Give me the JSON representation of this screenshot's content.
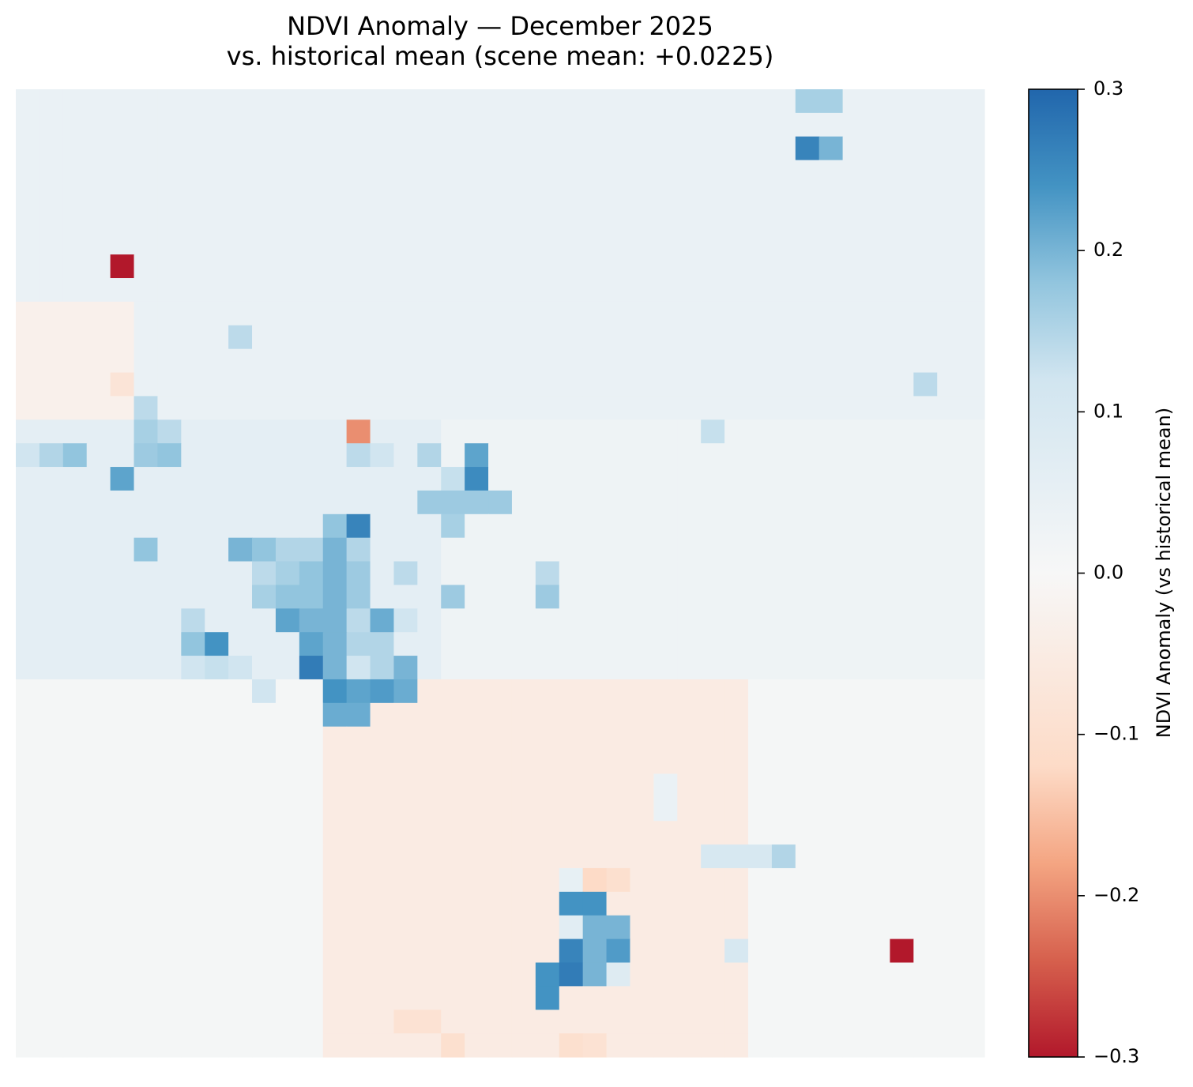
{
  "chart_data": {
    "type": "heatmap",
    "title_line1": "NDVI Anomaly — December 2025",
    "title_line2": "vs. historical mean  (scene mean: +0.0225)",
    "colorbar": {
      "label": "NDVI Anomaly (vs historical mean)",
      "colormap": "RdBu",
      "vmin": -0.3,
      "vmax": 0.3,
      "ticks": [
        0.3,
        0.2,
        0.1,
        0.0,
        -0.1,
        -0.2,
        -0.3
      ],
      "tick_labels": [
        "0.3",
        "0.2",
        "0.1",
        "0.0",
        "−0.1",
        "−0.2",
        "−0.3"
      ]
    },
    "grid": false,
    "axes_visible": false,
    "nrows": 41,
    "ncols": 41,
    "default_value": 0.02,
    "base_regions": [
      {
        "rows": [
          0,
          13
        ],
        "cols": [
          0,
          40
        ],
        "value": 0.04
      },
      {
        "rows": [
          9,
          14
        ],
        "cols": [
          0,
          4
        ],
        "value": -0.03
      },
      {
        "rows": [
          14,
          24
        ],
        "cols": [
          0,
          17
        ],
        "value": 0.06
      },
      {
        "rows": [
          14,
          24
        ],
        "cols": [
          18,
          40
        ],
        "value": 0.03
      },
      {
        "rows": [
          25,
          40
        ],
        "cols": [
          0,
          12
        ],
        "value": 0.01
      },
      {
        "rows": [
          25,
          40
        ],
        "cols": [
          13,
          30
        ],
        "value": -0.05
      },
      {
        "rows": [
          25,
          40
        ],
        "cols": [
          31,
          40
        ],
        "value": 0.01
      }
    ],
    "cells": [
      [
        0,
        33,
        0.16
      ],
      [
        0,
        34,
        0.16
      ],
      [
        2,
        33,
        0.26
      ],
      [
        2,
        34,
        0.2
      ],
      [
        7,
        4,
        -0.3
      ],
      [
        10,
        9,
        0.14
      ],
      [
        12,
        4,
        -0.08
      ],
      [
        12,
        38,
        0.14
      ],
      [
        13,
        5,
        0.14
      ],
      [
        14,
        5,
        0.16
      ],
      [
        14,
        6,
        0.14
      ],
      [
        14,
        14,
        -0.2
      ],
      [
        14,
        29,
        0.13
      ],
      [
        15,
        0,
        0.12
      ],
      [
        15,
        1,
        0.15
      ],
      [
        15,
        2,
        0.18
      ],
      [
        15,
        5,
        0.17
      ],
      [
        15,
        6,
        0.18
      ],
      [
        15,
        14,
        0.14
      ],
      [
        15,
        15,
        0.12
      ],
      [
        15,
        17,
        0.15
      ],
      [
        15,
        19,
        0.22
      ],
      [
        16,
        4,
        0.22
      ],
      [
        16,
        18,
        0.13
      ],
      [
        16,
        19,
        0.25
      ],
      [
        17,
        17,
        0.17
      ],
      [
        17,
        18,
        0.17
      ],
      [
        17,
        19,
        0.17
      ],
      [
        17,
        20,
        0.17
      ],
      [
        18,
        13,
        0.18
      ],
      [
        18,
        14,
        0.26
      ],
      [
        18,
        18,
        0.16
      ],
      [
        19,
        5,
        0.18
      ],
      [
        19,
        9,
        0.2
      ],
      [
        19,
        10,
        0.18
      ],
      [
        19,
        11,
        0.15
      ],
      [
        19,
        12,
        0.15
      ],
      [
        19,
        13,
        0.2
      ],
      [
        19,
        14,
        0.15
      ],
      [
        20,
        10,
        0.14
      ],
      [
        20,
        11,
        0.16
      ],
      [
        20,
        12,
        0.18
      ],
      [
        20,
        13,
        0.2
      ],
      [
        20,
        14,
        0.17
      ],
      [
        20,
        16,
        0.14
      ],
      [
        20,
        22,
        0.14
      ],
      [
        21,
        10,
        0.16
      ],
      [
        21,
        11,
        0.18
      ],
      [
        21,
        12,
        0.18
      ],
      [
        21,
        13,
        0.2
      ],
      [
        21,
        14,
        0.17
      ],
      [
        21,
        18,
        0.17
      ],
      [
        21,
        22,
        0.17
      ],
      [
        22,
        7,
        0.14
      ],
      [
        22,
        11,
        0.22
      ],
      [
        22,
        12,
        0.2
      ],
      [
        22,
        13,
        0.2
      ],
      [
        22,
        14,
        0.14
      ],
      [
        22,
        15,
        0.21
      ],
      [
        22,
        16,
        0.12
      ],
      [
        23,
        7,
        0.18
      ],
      [
        23,
        8,
        0.24
      ],
      [
        23,
        12,
        0.22
      ],
      [
        23,
        13,
        0.2
      ],
      [
        23,
        14,
        0.15
      ],
      [
        23,
        15,
        0.15
      ],
      [
        24,
        7,
        0.12
      ],
      [
        24,
        8,
        0.13
      ],
      [
        24,
        9,
        0.12
      ],
      [
        24,
        12,
        0.27
      ],
      [
        24,
        13,
        0.2
      ],
      [
        24,
        14,
        0.12
      ],
      [
        24,
        15,
        0.15
      ],
      [
        24,
        16,
        0.2
      ],
      [
        25,
        10,
        0.12
      ],
      [
        25,
        13,
        0.24
      ],
      [
        25,
        14,
        0.22
      ],
      [
        25,
        15,
        0.23
      ],
      [
        25,
        16,
        0.21
      ],
      [
        26,
        13,
        0.21
      ],
      [
        26,
        14,
        0.21
      ],
      [
        29,
        27,
        0.04
      ],
      [
        30,
        27,
        0.04
      ],
      [
        32,
        29,
        0.1
      ],
      [
        32,
        30,
        0.1
      ],
      [
        32,
        31,
        0.1
      ],
      [
        32,
        32,
        0.15
      ],
      [
        33,
        23,
        0.05
      ],
      [
        33,
        24,
        -0.12
      ],
      [
        33,
        25,
        -0.1
      ],
      [
        34,
        23,
        0.24
      ],
      [
        34,
        24,
        0.24
      ],
      [
        35,
        23,
        0.07
      ],
      [
        35,
        24,
        0.2
      ],
      [
        35,
        25,
        0.2
      ],
      [
        36,
        23,
        0.26
      ],
      [
        36,
        24,
        0.2
      ],
      [
        36,
        25,
        0.23
      ],
      [
        36,
        30,
        0.1
      ],
      [
        36,
        37,
        -0.3
      ],
      [
        37,
        22,
        0.24
      ],
      [
        37,
        23,
        0.27
      ],
      [
        37,
        24,
        0.2
      ],
      [
        37,
        25,
        0.08
      ],
      [
        38,
        22,
        0.24
      ],
      [
        39,
        16,
        -0.09
      ],
      [
        39,
        17,
        -0.09
      ],
      [
        40,
        18,
        -0.1
      ],
      [
        40,
        23,
        -0.1
      ],
      [
        40,
        24,
        -0.09
      ]
    ]
  }
}
